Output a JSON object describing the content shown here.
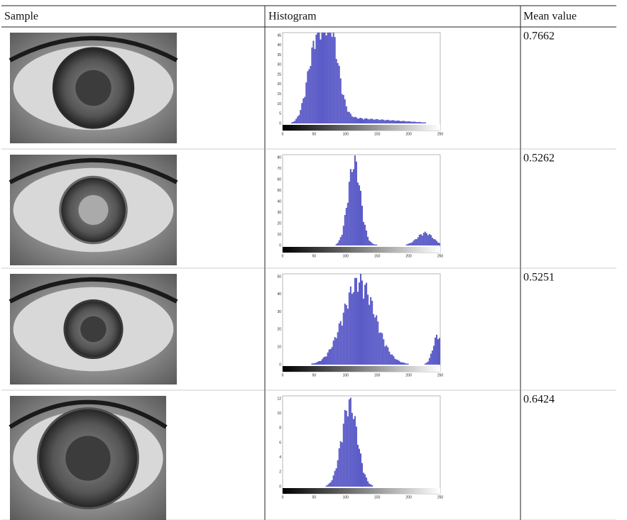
{
  "table": {
    "header": [
      "Sample",
      "Histogram",
      "Mean value"
    ],
    "rows": [
      {
        "histogram": {
          "yticks": [
            0,
            5,
            10,
            15,
            20,
            25,
            30,
            35,
            40,
            45
          ],
          "xticks": [
            0,
            50,
            100,
            150,
            200,
            250
          ]
        },
        "mean": "0.7662"
      },
      {
        "histogram": {
          "yticks": [
            0,
            10,
            20,
            30,
            40,
            50,
            60,
            70,
            80
          ],
          "xticks": [
            0,
            50,
            100,
            150,
            200,
            250
          ]
        },
        "mean": "0.5262"
      },
      {
        "histogram": {
          "yticks": [
            0,
            10,
            20,
            30,
            40,
            50
          ],
          "xticks": [
            0,
            50,
            100,
            150,
            200,
            250
          ]
        },
        "mean": "0.5251"
      },
      {
        "histogram": {
          "yticks": [
            0,
            2,
            4,
            6,
            8,
            10,
            12
          ],
          "xticks": [
            0,
            50,
            100,
            150,
            200,
            250
          ]
        },
        "mean": "0.6424"
      }
    ]
  }
}
